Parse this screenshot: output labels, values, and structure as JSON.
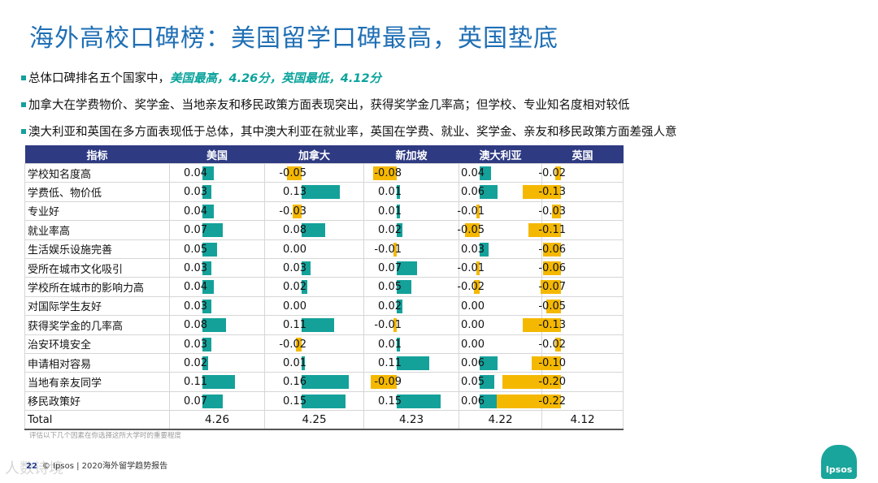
{
  "title": "海外高校口碑榜：美国留学口碑最高，英国垫底",
  "bullets": [
    {
      "text": "总体口碑排名五个国家中，",
      "highlight": "美国最高，4.26分，英国最低，4.12分"
    },
    {
      "text": "加拿大在学费物价、奖学金、当地亲友和移民政策方面表现突出，获得奖学金几率高；但学校、专业知名度相对较低",
      "highlight": ""
    },
    {
      "text": "澳大利亚和英国在多方面表现低于总体，其中澳大利亚在就业率，英国在学费、就业、奖学金、亲友和移民政策方面差强人意",
      "highlight": ""
    }
  ],
  "colors": {
    "positive": "#14a19a",
    "negative": "#f5b800",
    "header": "#2e3a82",
    "title": "#1f6fb5"
  },
  "chart_data": {
    "type": "table",
    "header_label": "指标",
    "countries": [
      "美国",
      "加拿大",
      "新加坡",
      "澳大利亚",
      "英国"
    ],
    "rows": [
      {
        "label": "学校知名度高",
        "values": [
          "0.04",
          "-0.05",
          "-0.08",
          "0.04",
          "-0.02"
        ]
      },
      {
        "label": "学费低、物价低",
        "values": [
          "0.03",
          "0.13",
          "0.01",
          "0.06",
          "-0.13"
        ]
      },
      {
        "label": "专业好",
        "values": [
          "0.04",
          "-0.03",
          "0.01",
          "-0.01",
          "-0.03"
        ]
      },
      {
        "label": "就业率高",
        "values": [
          "0.07",
          "0.08",
          "0.02",
          "-0.05",
          "-0.11"
        ]
      },
      {
        "label": "生活娱乐设施完善",
        "values": [
          "0.05",
          "0.00",
          "-0.01",
          "0.03",
          "-0.06"
        ]
      },
      {
        "label": "受所在城市文化吸引",
        "values": [
          "0.03",
          "0.03",
          "0.07",
          "-0.01",
          "-0.06"
        ]
      },
      {
        "label": "学校所在城市的影响力高",
        "values": [
          "0.04",
          "0.02",
          "0.05",
          "-0.02",
          "-0.07"
        ]
      },
      {
        "label": "对国际学生友好",
        "values": [
          "0.03",
          "0.00",
          "0.02",
          "0.00",
          "-0.05"
        ]
      },
      {
        "label": "获得奖学金的几率高",
        "values": [
          "0.08",
          "0.11",
          "-0.01",
          "0.00",
          "-0.13"
        ]
      },
      {
        "label": "治安环境安全",
        "values": [
          "0.03",
          "-0.02",
          "0.01",
          "0.00",
          "-0.02"
        ]
      },
      {
        "label": "申请相对容易",
        "values": [
          "0.02",
          "0.01",
          "0.11",
          "0.06",
          "-0.10"
        ]
      },
      {
        "label": "当地有亲友同学",
        "values": [
          "0.11",
          "0.16",
          "-0.09",
          "0.05",
          "-0.20"
        ]
      },
      {
        "label": "移民政策好",
        "values": [
          "0.07",
          "0.15",
          "0.15",
          "0.06",
          "-0.22"
        ]
      }
    ],
    "total": {
      "label": "Total",
      "values": [
        "4.26",
        "4.25",
        "4.23",
        "4.22",
        "4.12"
      ]
    }
  },
  "footnote": "评估以下几个因素在你选择这所大学时的重要程度",
  "source": {
    "page": "22",
    "text": "© Ipsos | 2020海外留学趋势报告"
  },
  "watermark": "人数诗境",
  "logo_text": "Ipsos"
}
